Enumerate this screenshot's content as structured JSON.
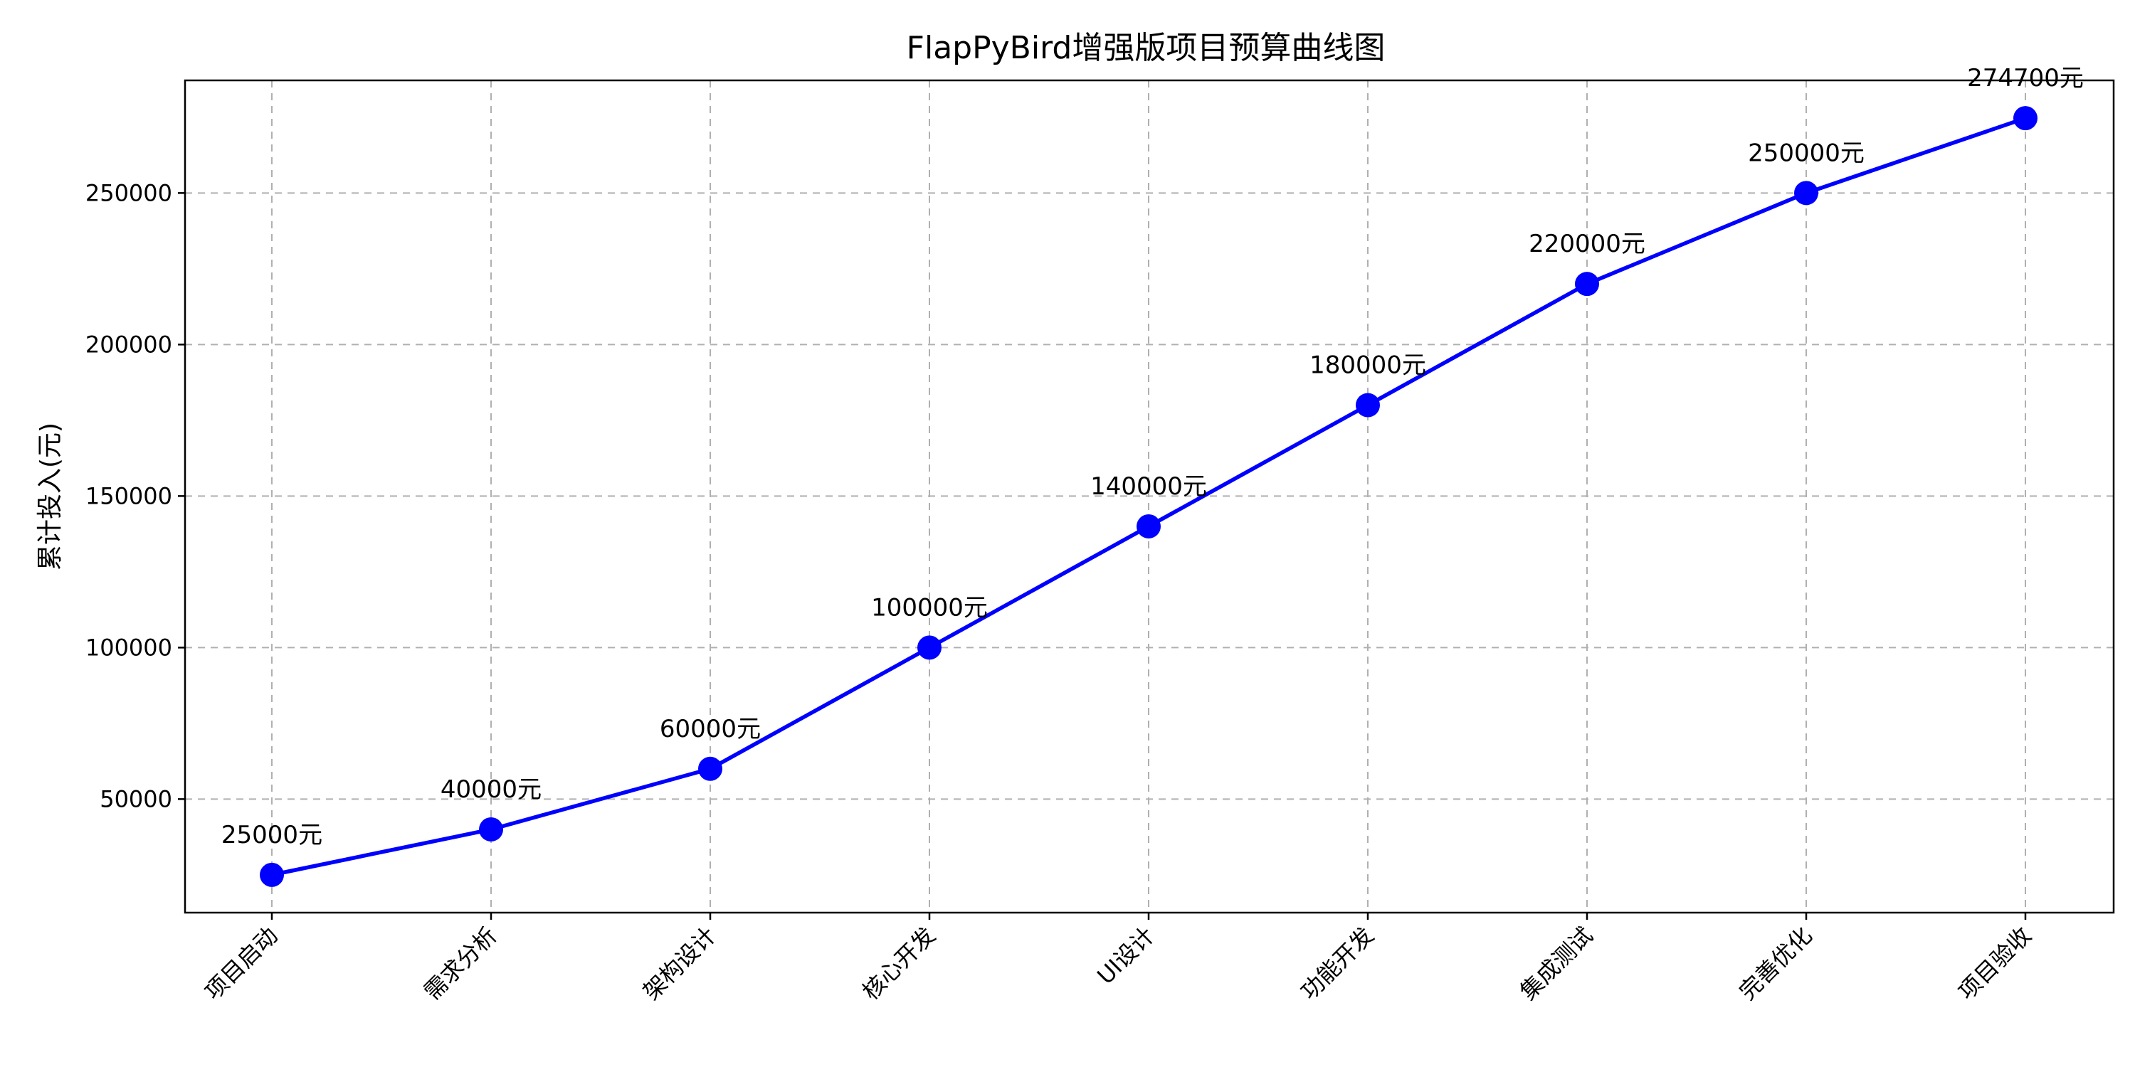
{
  "chart_data": {
    "type": "line",
    "title": "FlapPyBird增强版项目预算曲线图",
    "xlabel": "",
    "ylabel": "累计投入(元)",
    "categories": [
      "项目启动",
      "需求分析",
      "架构设计",
      "核心开发",
      "UI设计",
      "功能开发",
      "集成测试",
      "完善优化",
      "项目验收"
    ],
    "series": [
      {
        "values": [
          25000,
          40000,
          60000,
          100000,
          140000,
          180000,
          220000,
          250000,
          274700
        ]
      }
    ],
    "data_labels": [
      "25000元",
      "40000元",
      "60000元",
      "100000元",
      "140000元",
      "180000元",
      "220000元",
      "250000元",
      "274700元"
    ],
    "yticks": [
      50000,
      100000,
      150000,
      200000,
      250000
    ],
    "ytick_labels": [
      "50000",
      "100000",
      "150000",
      "200000",
      "250000"
    ],
    "ylim": [
      12530,
      287170
    ],
    "grid": true,
    "legend": "none",
    "colors": {
      "line": "#0000ff",
      "marker": "#0000ff",
      "grid": "#b0b0b0"
    }
  }
}
